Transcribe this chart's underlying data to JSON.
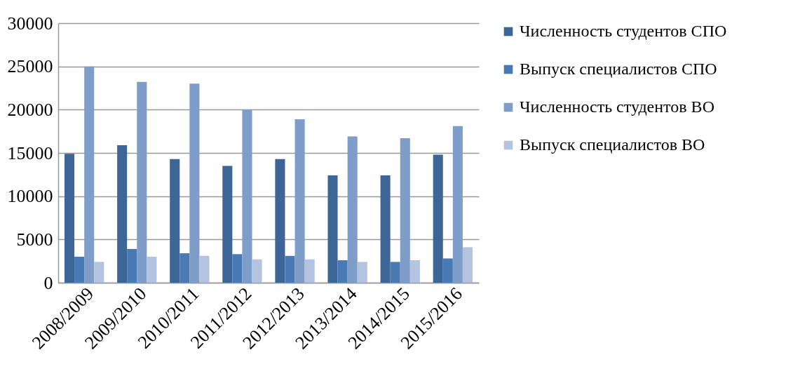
{
  "chart_data": {
    "type": "bar",
    "categories": [
      "2008/2009",
      "2009/2010",
      "2010/2011",
      "2011/2012",
      "2012/2013",
      "2013/2014",
      "2014/2015",
      "2015/2016"
    ],
    "series": [
      {
        "name": "Численность студентов СПО",
        "color": "#3d6697",
        "values": [
          14900,
          15900,
          14300,
          13500,
          14300,
          12400,
          12400,
          14800
        ]
      },
      {
        "name": "Выпуск специалистов СПО",
        "color": "#4a7ab3",
        "values": [
          3000,
          3900,
          3400,
          3300,
          3100,
          2600,
          2400,
          2800
        ]
      },
      {
        "name": "Численность студентов ВО",
        "color": "#7f9dc9",
        "values": [
          25000,
          23200,
          23000,
          20000,
          18900,
          16900,
          16700,
          18100
        ]
      },
      {
        "name": "Выпуск специалистов ВО",
        "color": "#b4c3df",
        "values": [
          2400,
          3000,
          3100,
          2700,
          2700,
          2400,
          2600,
          4100
        ]
      }
    ],
    "ylim": [
      0,
      30000
    ],
    "yticks": [
      0,
      5000,
      10000,
      15000,
      20000,
      25000,
      30000
    ],
    "grid": "y",
    "legend": "right"
  }
}
